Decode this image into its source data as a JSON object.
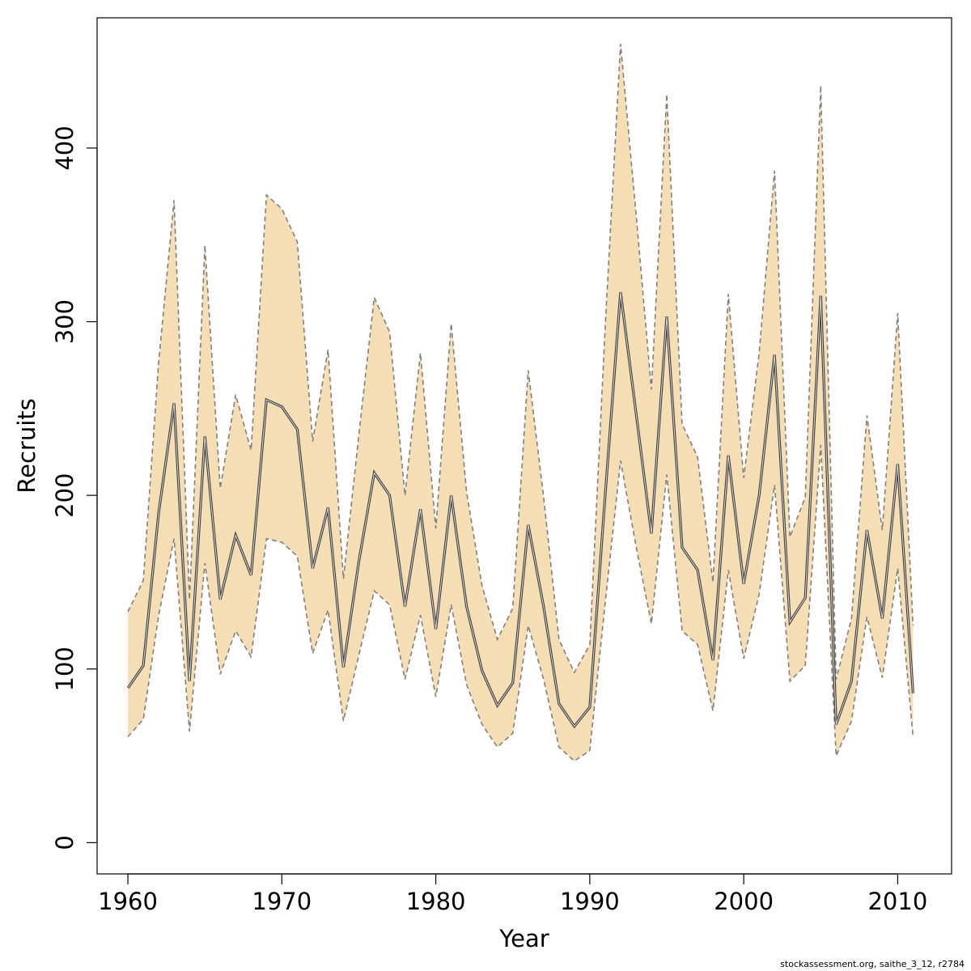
{
  "chart_data": {
    "type": "area",
    "xlabel": "Year",
    "ylabel": "Recruits",
    "xlim": [
      1958,
      2013.5
    ],
    "ylim": [
      -18,
      475
    ],
    "x_ticks": [
      1960,
      1970,
      1980,
      1990,
      2000,
      2010
    ],
    "y_ticks": [
      0,
      100,
      200,
      300,
      400
    ],
    "grid": false,
    "colors": {
      "band": "#f5deb3",
      "bound_line": "#808080",
      "median_line": "#404040"
    },
    "x": [
      1960,
      1961,
      1962,
      1963,
      1964,
      1965,
      1966,
      1967,
      1968,
      1969,
      1970,
      1971,
      1972,
      1973,
      1974,
      1975,
      1976,
      1977,
      1978,
      1979,
      1980,
      1981,
      1982,
      1983,
      1984,
      1985,
      1986,
      1987,
      1988,
      1989,
      1990,
      1991,
      1992,
      1993,
      1994,
      1995,
      1996,
      1997,
      1998,
      1999,
      2000,
      2001,
      2002,
      2003,
      2004,
      2005,
      2006,
      2007,
      2008,
      2009,
      2010,
      2011
    ],
    "series": [
      {
        "values": [
          89,
          102,
          190,
          253,
          93,
          234,
          140,
          177,
          154,
          255,
          251,
          238,
          158,
          193,
          101,
          162,
          213,
          200,
          136,
          192,
          123,
          200,
          136,
          99,
          79,
          92,
          183,
          136,
          80,
          67,
          78,
          200,
          317,
          248,
          178,
          303,
          170,
          157,
          105,
          223,
          149,
          200,
          281,
          127,
          141,
          315,
          68,
          93,
          180,
          129,
          218,
          86
        ]
      }
    ],
    "lower": [
      61,
      71,
      131,
      175,
      64,
      161,
      97,
      122,
      107,
      175,
      173,
      165,
      109,
      134,
      70,
      108,
      145,
      137,
      94,
      131,
      84,
      137,
      91,
      68,
      55,
      63,
      125,
      94,
      55,
      47,
      53,
      138,
      220,
      171,
      126,
      212,
      122,
      114,
      76,
      157,
      106,
      143,
      206,
      93,
      102,
      229,
      50,
      70,
      130,
      95,
      158,
      61
    ],
    "upper": [
      133,
      151,
      277,
      370,
      140,
      344,
      204,
      258,
      226,
      373,
      365,
      346,
      231,
      284,
      152,
      235,
      314,
      294,
      200,
      282,
      181,
      299,
      202,
      148,
      117,
      135,
      272,
      199,
      117,
      98,
      114,
      297,
      460,
      363,
      261,
      431,
      241,
      222,
      150,
      316,
      210,
      282,
      387,
      176,
      199,
      436,
      94,
      129,
      246,
      180,
      305,
      125
    ]
  },
  "footer": {
    "credit": "stockassessment.org, saithe_3_12, r2784"
  }
}
